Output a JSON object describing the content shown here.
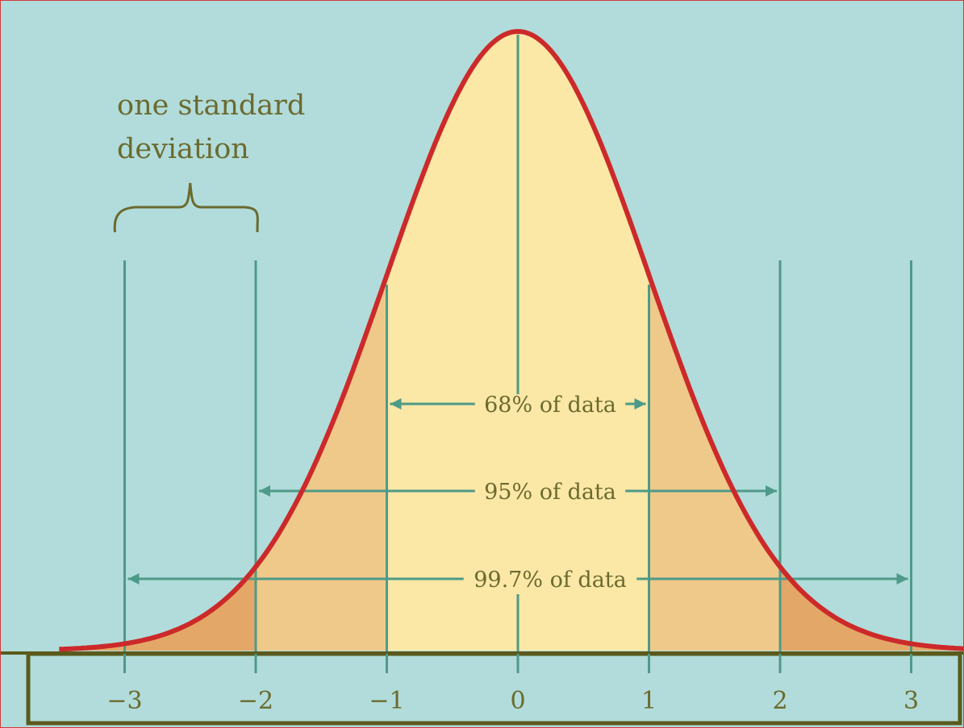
{
  "chart_data": {
    "type": "area",
    "distribution": "normal",
    "mean": 0,
    "sd": 1,
    "x_range": [
      -3.5,
      3.5
    ],
    "x_ticks": [
      -3,
      -2,
      -1,
      0,
      1,
      2,
      3
    ],
    "x_tick_labels": [
      "−3",
      "−2",
      "−1",
      "0",
      "1",
      "2",
      "3"
    ],
    "bands": [
      {
        "label": "68% of data",
        "from": -1,
        "to": 1
      },
      {
        "label": "95% of data",
        "from": -2,
        "to": 2
      },
      {
        "label": "99.7% of data",
        "from": -3,
        "to": 3
      }
    ],
    "annotation": {
      "line1": "one standard",
      "line2": "deviation",
      "from": -3,
      "to": -2
    },
    "colors": {
      "background": "#b1dcdb",
      "curve": "#cc2a2a",
      "fill_inner": "#fbe7a6",
      "fill_middle": "#efc98a",
      "fill_outer": "#e3a868",
      "guide_lines": "#4e9a88",
      "text": "#6b6a2e",
      "axis_box": "#5b5a1c",
      "frame": "#d23a3a"
    }
  }
}
